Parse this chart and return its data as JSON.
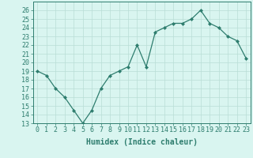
{
  "xlabel": "Humidex (Indice chaleur)",
  "x": [
    0,
    1,
    2,
    3,
    4,
    5,
    6,
    7,
    8,
    9,
    10,
    11,
    12,
    13,
    14,
    15,
    16,
    17,
    18,
    19,
    20,
    21,
    22,
    23
  ],
  "y": [
    19.0,
    18.5,
    17.0,
    16.0,
    14.5,
    13.0,
    14.5,
    17.0,
    18.5,
    19.0,
    19.5,
    22.0,
    19.5,
    23.5,
    24.0,
    24.5,
    24.5,
    25.0,
    26.0,
    24.5,
    24.0,
    23.0,
    22.5,
    20.5
  ],
  "ylim": [
    13,
    27
  ],
  "yticks": [
    13,
    14,
    15,
    16,
    17,
    18,
    19,
    20,
    21,
    22,
    23,
    24,
    25,
    26
  ],
  "line_color": "#2e7d6e",
  "marker": "D",
  "marker_size": 2,
  "bg_color": "#d9f5f0",
  "grid_color": "#b8ddd6",
  "tick_fontsize": 6,
  "xlabel_fontsize": 7
}
